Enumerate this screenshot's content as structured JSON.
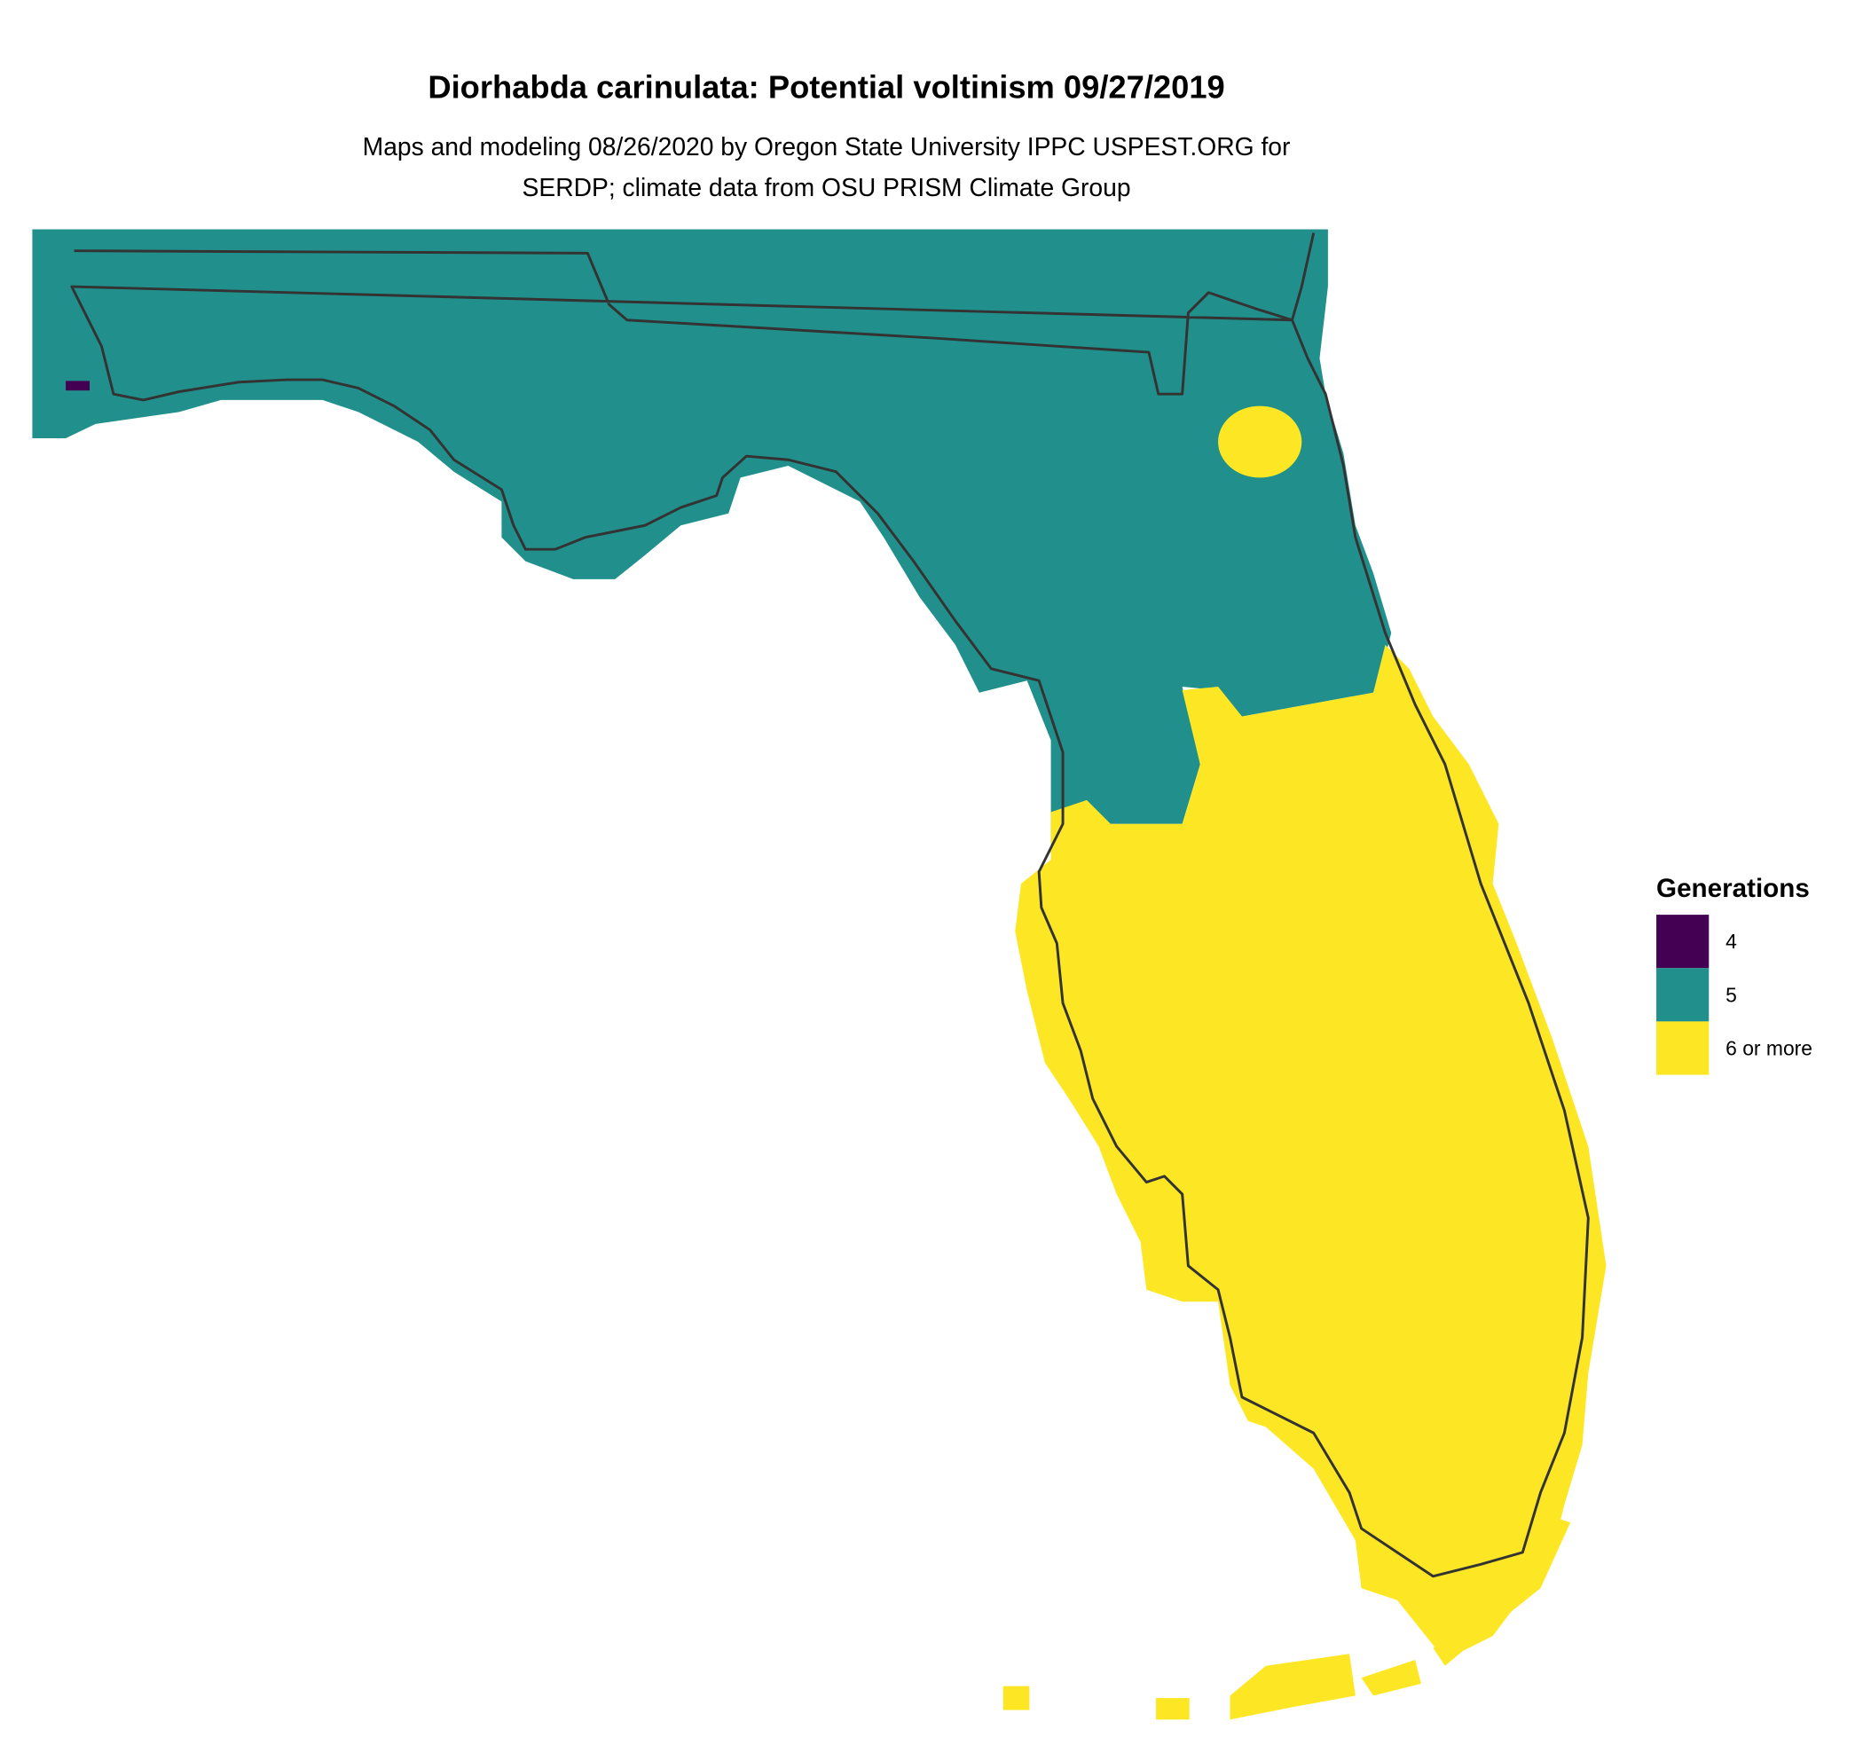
{
  "title": "Diorhabda carinulata: Potential voltinism 09/27/2019",
  "subtitle": [
    "Maps and modeling 08/26/2020 by Oregon State University IPPC USPEST.ORG for",
    "SERDP; climate data from OSU PRISM Climate Group"
  ],
  "legend": {
    "title": "Generations",
    "items": [
      {
        "label": "4",
        "color": "#440154"
      },
      {
        "label": "5",
        "color": "#21908c"
      },
      {
        "label": "6 or more",
        "color": "#fde725"
      }
    ]
  }
}
